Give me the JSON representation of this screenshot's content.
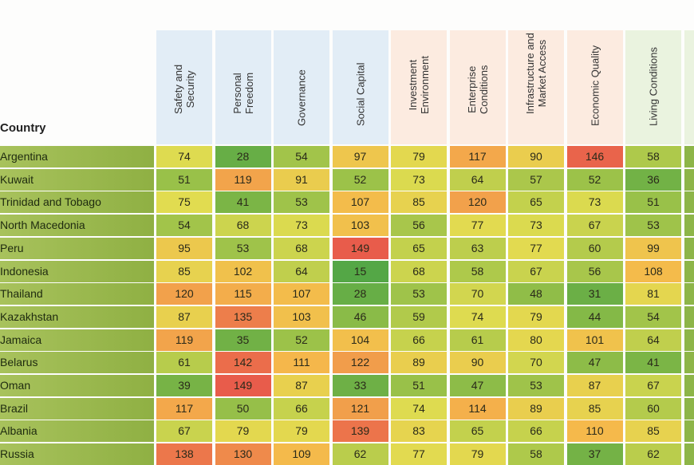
{
  "chart_data": {
    "type": "heatmap",
    "row_header": "Country",
    "columns": [
      {
        "label": [
          "Safety and",
          "Security"
        ],
        "group": "blue"
      },
      {
        "label": [
          "Personal",
          "Freedom"
        ],
        "group": "blue"
      },
      {
        "label": [
          "Governance"
        ],
        "group": "blue"
      },
      {
        "label": [
          "Social Capital"
        ],
        "group": "blue"
      },
      {
        "label": [
          "Investment",
          "Environment"
        ],
        "group": "orange"
      },
      {
        "label": [
          "Enterprise",
          "Conditions"
        ],
        "group": "orange"
      },
      {
        "label": [
          "Infrastructure and",
          "Market Access"
        ],
        "group": "orange"
      },
      {
        "label": [
          "Economic Quality"
        ],
        "group": "orange"
      },
      {
        "label": [
          "Living Conditions"
        ],
        "group": "green"
      }
    ],
    "rows": [
      {
        "country": "Argentina",
        "values": [
          74,
          28,
          54,
          97,
          79,
          117,
          90,
          146,
          58
        ]
      },
      {
        "country": "Kuwait",
        "values": [
          51,
          119,
          91,
          52,
          73,
          64,
          57,
          52,
          36
        ]
      },
      {
        "country": "Trinidad and Tobago",
        "values": [
          75,
          41,
          53,
          107,
          85,
          120,
          65,
          73,
          51
        ]
      },
      {
        "country": "North Macedonia",
        "values": [
          54,
          68,
          73,
          103,
          56,
          77,
          73,
          67,
          53
        ]
      },
      {
        "country": "Peru",
        "values": [
          95,
          53,
          68,
          149,
          65,
          63,
          77,
          60,
          99
        ]
      },
      {
        "country": "Indonesia",
        "values": [
          85,
          102,
          64,
          15,
          68,
          58,
          67,
          56,
          108
        ]
      },
      {
        "country": "Thailand",
        "values": [
          120,
          115,
          107,
          28,
          53,
          70,
          48,
          31,
          81
        ]
      },
      {
        "country": "Kazakhstan",
        "values": [
          87,
          135,
          103,
          46,
          59,
          74,
          79,
          44,
          54
        ]
      },
      {
        "country": "Jamaica",
        "values": [
          119,
          35,
          52,
          104,
          66,
          61,
          80,
          101,
          64
        ]
      },
      {
        "country": "Belarus",
        "values": [
          61,
          142,
          111,
          122,
          89,
          90,
          70,
          47,
          41
        ]
      },
      {
        "country": "Oman",
        "values": [
          39,
          149,
          87,
          33,
          51,
          47,
          53,
          87,
          67
        ]
      },
      {
        "country": "Brazil",
        "values": [
          117,
          50,
          66,
          121,
          74,
          114,
          89,
          85,
          60
        ]
      },
      {
        "country": "Albania",
        "values": [
          67,
          79,
          79,
          139,
          83,
          65,
          66,
          110,
          85
        ]
      },
      {
        "country": "Russia",
        "values": [
          138,
          130,
          109,
          62,
          77,
          79,
          58,
          37,
          62
        ]
      }
    ],
    "colors": {
      "header_blue": "#e2edf6",
      "header_orange": "#fcebe0",
      "header_green": "#eaf3df"
    }
  }
}
